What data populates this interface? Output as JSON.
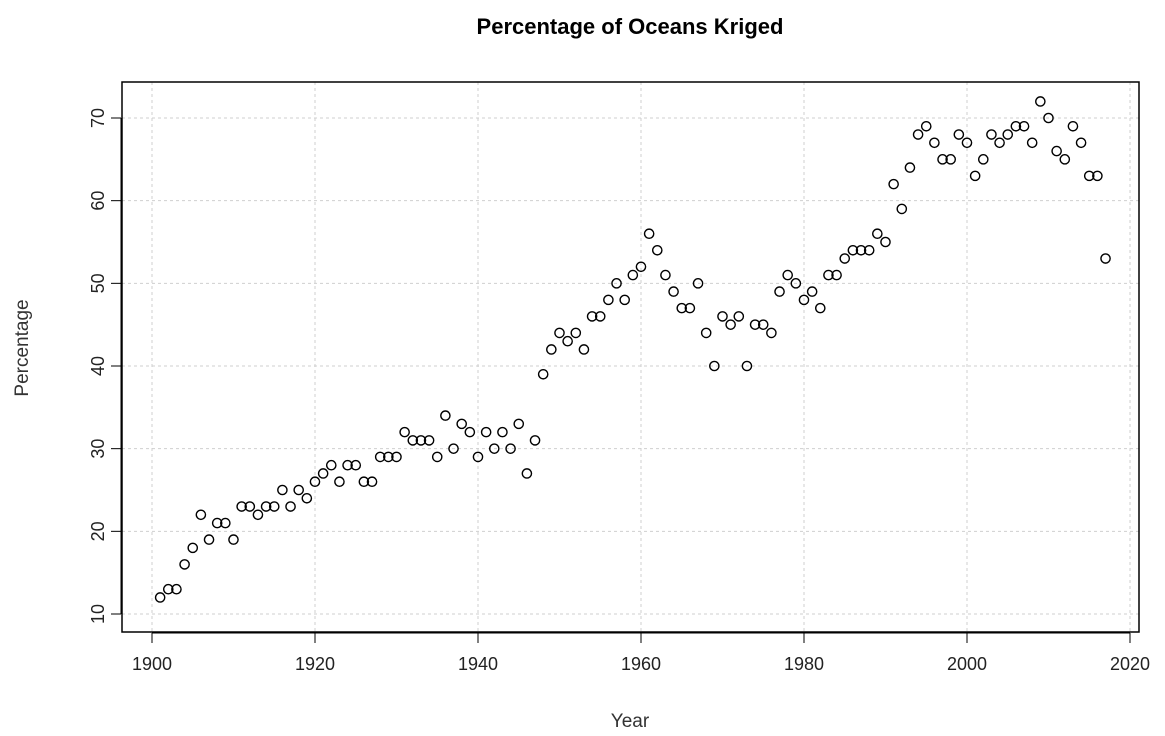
{
  "chart_data": {
    "type": "scatter",
    "title": "Percentage of Oceans Kriged",
    "xlabel": "Year",
    "ylabel": "Percentage",
    "xlim": [
      1900,
      2020
    ],
    "ylim": [
      10,
      72
    ],
    "x_ticks": [
      1900,
      1920,
      1940,
      1960,
      1980,
      2000,
      2020
    ],
    "y_ticks": [
      10,
      20,
      30,
      40,
      50,
      60,
      70
    ],
    "grid": true,
    "marker": "open-circle",
    "point_color": "#000000",
    "series": [
      {
        "x": [
          1901,
          1902,
          1903,
          1904,
          1905,
          1906,
          1907,
          1908,
          1909,
          1910,
          1911,
          1912,
          1913,
          1914,
          1915,
          1916,
          1917,
          1918,
          1919,
          1920,
          1921,
          1922,
          1923,
          1924,
          1925,
          1926,
          1927,
          1928,
          1929,
          1930,
          1931,
          1932,
          1933,
          1934,
          1935,
          1936,
          1937,
          1938,
          1939,
          1940,
          1941,
          1942,
          1943,
          1944,
          1945,
          1946,
          1947,
          1948,
          1949,
          1950,
          1951,
          1952,
          1953,
          1954,
          1955,
          1956,
          1957,
          1958,
          1959,
          1960,
          1961,
          1962,
          1963,
          1964,
          1965,
          1966,
          1967,
          1968,
          1969,
          1970,
          1971,
          1972,
          1973,
          1974,
          1975,
          1976,
          1977,
          1978,
          1979,
          1980,
          1981,
          1982,
          1983,
          1984,
          1985,
          1986,
          1987,
          1988,
          1989,
          1990,
          1991,
          1992,
          1993,
          1994,
          1995,
          1996,
          1997,
          1998,
          1999,
          2000,
          2001,
          2002,
          2003,
          2004,
          2005,
          2006,
          2007,
          2008,
          2009,
          2010,
          2011,
          2012,
          2013,
          2014,
          2015,
          2016,
          2017
        ],
        "y": [
          12,
          13,
          13,
          16,
          18,
          22,
          19,
          21,
          21,
          19,
          23,
          23,
          22,
          23,
          23,
          25,
          23,
          25,
          24,
          26,
          27,
          28,
          26,
          28,
          28,
          26,
          26,
          29,
          29,
          29,
          32,
          31,
          31,
          31,
          29,
          34,
          30,
          33,
          32,
          29,
          32,
          30,
          32,
          30,
          33,
          27,
          31,
          39,
          42,
          44,
          43,
          44,
          42,
          46,
          46,
          48,
          50,
          48,
          51,
          52,
          56,
          54,
          51,
          49,
          47,
          47,
          50,
          44,
          40,
          46,
          45,
          46,
          40,
          45,
          45,
          44,
          49,
          51,
          50,
          48,
          49,
          47,
          51,
          51,
          53,
          54,
          54,
          54,
          56,
          55,
          62,
          59,
          64,
          68,
          69,
          67,
          65,
          65,
          68,
          67,
          63,
          65,
          68,
          67,
          68,
          69,
          69,
          67,
          72,
          70,
          66,
          65,
          69,
          67,
          63,
          63,
          53
        ]
      }
    ]
  }
}
